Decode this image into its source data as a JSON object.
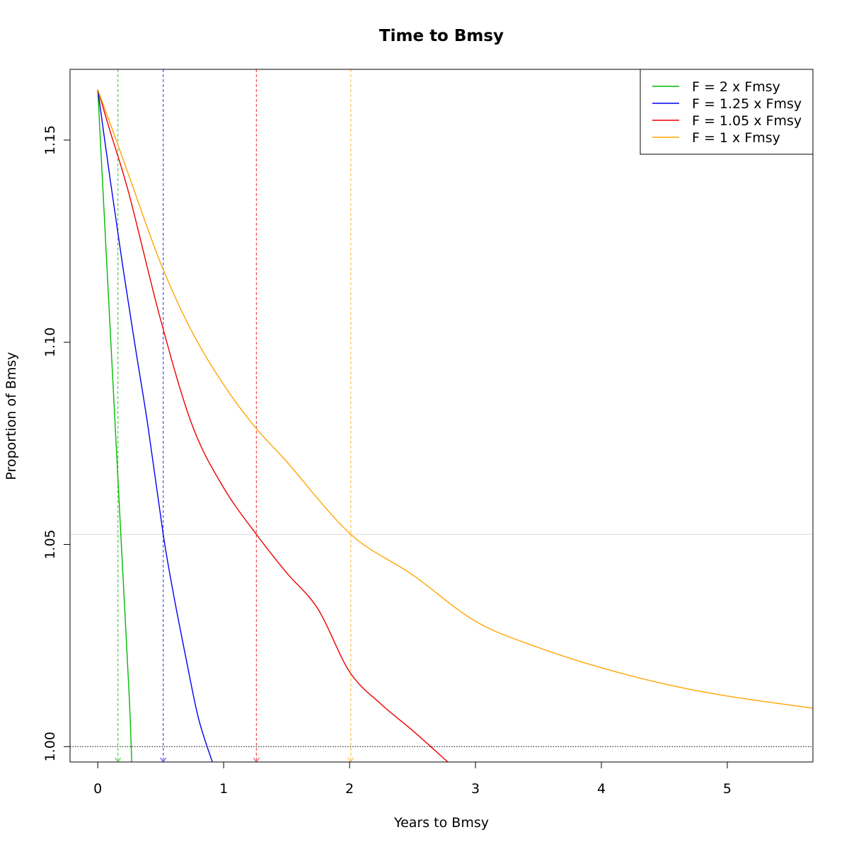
{
  "chart_data": {
    "type": "line",
    "title": "Time to Bmsy",
    "xlabel": "Years to Bmsy",
    "ylabel": "Proportion of Bmsy",
    "xlim": [
      -0.22,
      5.68
    ],
    "ylim": [
      0.9962,
      1.1675
    ],
    "x_ticks": [
      0,
      1,
      2,
      3,
      4,
      5
    ],
    "x_tick_labels": [
      "0",
      "1",
      "2",
      "3",
      "4",
      "5"
    ],
    "y_ticks": [
      1.0,
      1.05,
      1.1,
      1.15
    ],
    "y_tick_labels": [
      "1.00",
      "1.05",
      "1.10",
      "1.15"
    ],
    "grid": false,
    "legend_position": "top-right",
    "reference_lines": {
      "dotted_y": 1.0,
      "light_y": 1.0525
    },
    "series": [
      {
        "name": "F = 2 x Fmsy",
        "color": "#00bb00",
        "marker_x": 0.16,
        "x": [
          0,
          0.05,
          0.1,
          0.15,
          0.2,
          0.25,
          0.27
        ],
        "y": [
          1.1625,
          1.1325,
          1.1025,
          1.0725,
          1.0425,
          1.0125,
          0.9962
        ]
      },
      {
        "name": "F = 1.25 x Fmsy",
        "color": "#0000ee",
        "marker_x": 0.52,
        "x": [
          0,
          0.1,
          0.2,
          0.3,
          0.4,
          0.52,
          0.6,
          0.7,
          0.8,
          0.91
        ],
        "y": [
          1.1625,
          1.14,
          1.1185,
          1.0985,
          1.079,
          1.0525,
          1.038,
          1.022,
          1.007,
          0.9962
        ]
      },
      {
        "name": "F = 1.05 x Fmsy",
        "color": "#ee0000",
        "marker_x": 1.26,
        "x": [
          0,
          0.1,
          0.25,
          0.5,
          0.75,
          1.0,
          1.26,
          1.5,
          1.75,
          2.0,
          2.25,
          2.5,
          2.78
        ],
        "y": [
          1.1625,
          1.152,
          1.1365,
          1.1055,
          1.0795,
          1.064,
          1.0525,
          1.043,
          1.034,
          1.0185,
          1.0105,
          1.004,
          0.9962
        ]
      },
      {
        "name": "F = 1 x Fmsy",
        "color": "#ffa500",
        "marker_x": 2.01,
        "x": [
          0,
          0.1,
          0.25,
          0.5,
          0.75,
          1.0,
          1.25,
          1.5,
          2.01,
          2.5,
          3.0,
          3.5,
          4.0,
          4.5,
          5.0,
          5.68
        ],
        "y": [
          1.1625,
          1.154,
          1.141,
          1.1195,
          1.1025,
          1.0895,
          1.079,
          1.0705,
          1.0525,
          1.0425,
          1.031,
          1.0245,
          1.0195,
          1.0155,
          1.0125,
          1.0095
        ]
      }
    ]
  }
}
